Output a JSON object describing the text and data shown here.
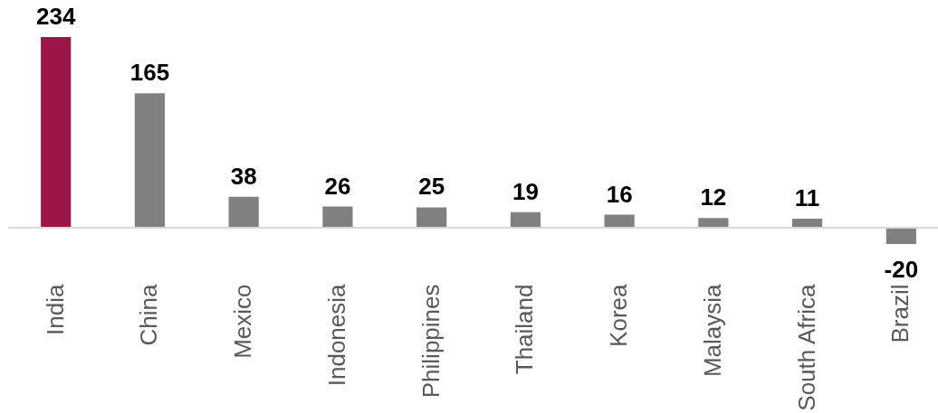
{
  "chart_data": {
    "type": "bar",
    "categories": [
      "India",
      "China",
      "Mexico",
      "Indonesia",
      "Philippines",
      "Thailand",
      "Korea",
      "Malaysia",
      "South Africa",
      "Brazil"
    ],
    "values": [
      234,
      165,
      38,
      26,
      25,
      19,
      16,
      12,
      11,
      -20
    ],
    "colors": [
      "#9b1549",
      "#808080",
      "#808080",
      "#808080",
      "#808080",
      "#808080",
      "#808080",
      "#808080",
      "#808080",
      "#808080"
    ],
    "data_labels": true
  }
}
